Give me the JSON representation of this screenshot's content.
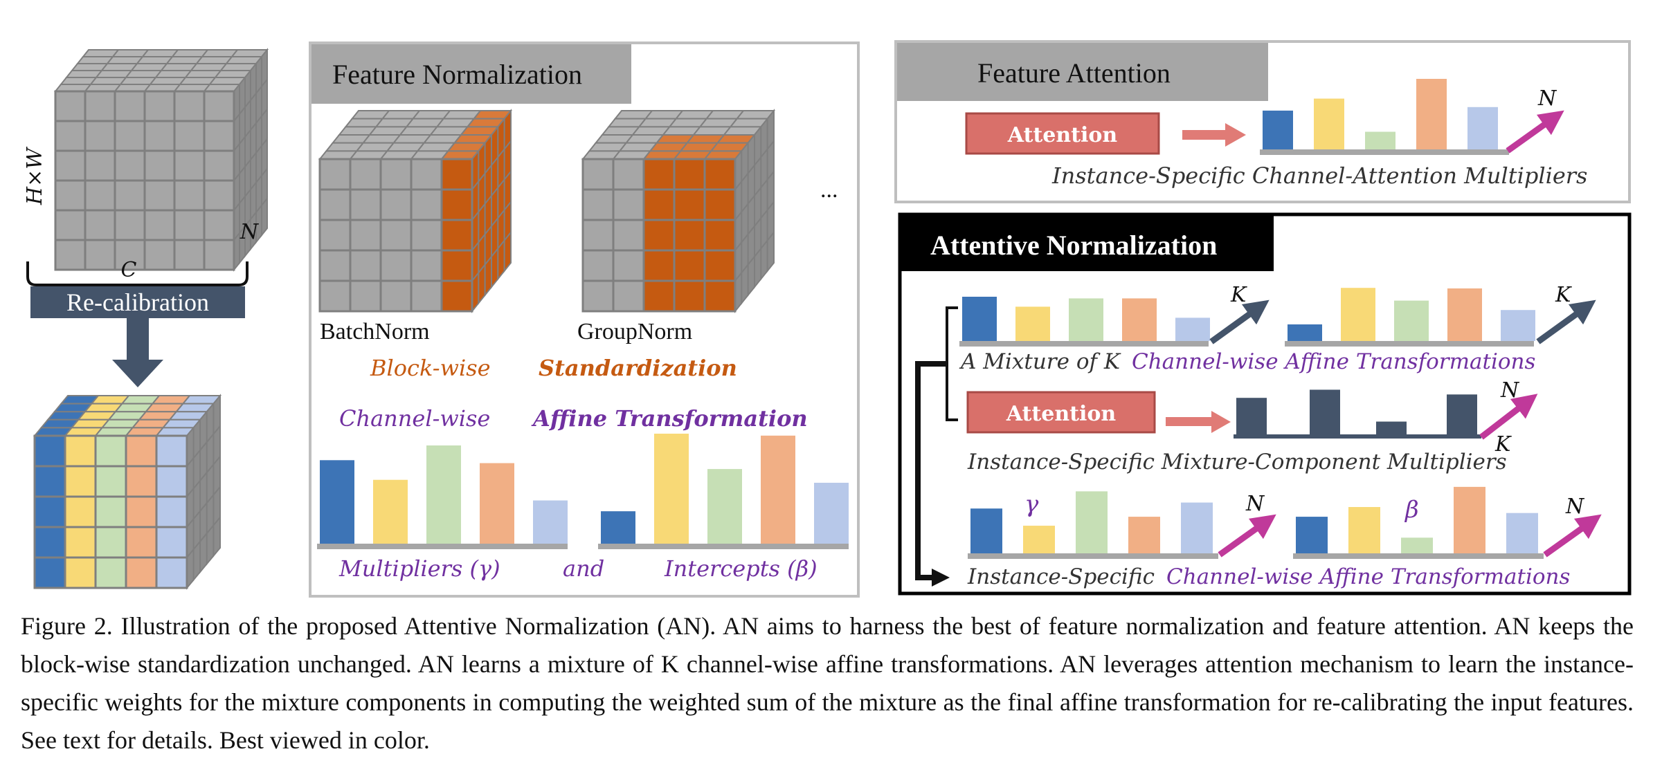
{
  "colors": {
    "blue": "#3d74b6",
    "yellow": "#f8d976",
    "green": "#c6dfb5",
    "orange": "#f1af85",
    "lightblue": "#b7c8e9",
    "purple": "#7030a0",
    "brownOrange": "#c55a11",
    "magenta": "#c0399a",
    "navy": "#44546a",
    "attention": "#d9706a",
    "cube": "#9e9e9e"
  },
  "panel_input": {
    "hw_label": "H×W",
    "n_label": "N",
    "c_label": "C",
    "recalibration_label": "Re-calibration"
  },
  "panel_fn": {
    "title": "Feature Normalization",
    "batchnorm_label": "BatchNorm",
    "groupnorm_label": "GroupNorm",
    "ellipsis": "...",
    "blockwise_label": "Block-wise",
    "standardization_label": "Standardization",
    "channelwise_label": "Channel-wise",
    "affine_label": "Affine Transformation",
    "multipliers_label": "Multipliers (γ)",
    "and_label": "and",
    "intercepts_label": "Intercepts (β)",
    "gamma_bars": [
      0.85,
      0.65,
      1.0,
      0.82,
      0.44
    ],
    "beta_bars": [
      0.33,
      1.12,
      0.76,
      1.1,
      0.62
    ]
  },
  "panel_fa": {
    "title": "Feature Attention",
    "attention_label": "Attention",
    "n_label": "N",
    "multipliers_label": "Instance-Specific Channel-Attention Multipliers",
    "bars": [
      0.55,
      0.72,
      0.25,
      1.0,
      0.6
    ]
  },
  "panel_an": {
    "title": "Attentive Normalization",
    "attention_label": "Attention",
    "mixture_label_a": "A Mixture of K",
    "mixture_label_b": "Channel-wise Affine Transformations",
    "component_label": "Instance-Specific Mixture-Component Multipliers",
    "final_label_a": "Instance-Specific",
    "final_label_b": "Channel-wise Affine Transformations",
    "k_label": "K",
    "n_label": "N",
    "gamma_symbol": "γ",
    "beta_symbol": "β",
    "mix1_bars": [
      0.8,
      0.62,
      0.77,
      0.77,
      0.42
    ],
    "mix2_bars": [
      0.3,
      0.96,
      0.73,
      0.95,
      0.56
    ],
    "comp_bars": [
      0.6,
      0.72,
      0.25,
      0.65
    ],
    "gamma_bars": [
      0.6,
      0.37,
      0.83,
      0.49,
      0.68
    ],
    "beta_bars": [
      0.49,
      0.62,
      0.21,
      0.89,
      0.54
    ]
  },
  "caption": "Figure 2. Illustration of the proposed Attentive Normalization (AN). AN aims to harness the best of feature normalization and feature attention.  AN keeps the block-wise standardization unchanged.  AN learns a mixture of K channel-wise affine transformations.  AN leverages attention mechanism to learn the instance-specific weights for the mixture components in computing the weighted sum of the mixture as the final affine transformation for re-calibrating the input features. See text for details. Best viewed in color."
}
